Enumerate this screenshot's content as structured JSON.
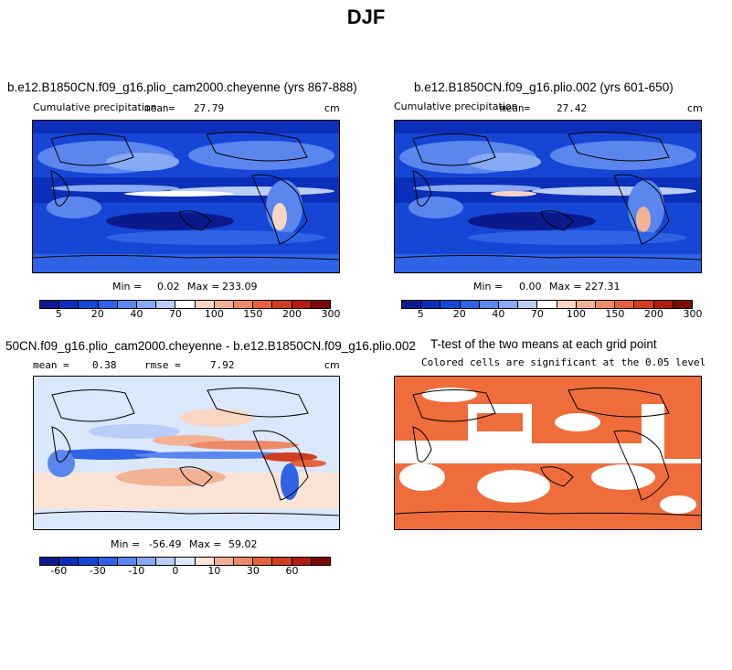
{
  "page": {
    "title": "DJF"
  },
  "panels": {
    "p1": {
      "title": "b.e12.B1850CN.f09_g16.plio_cam2000.cheyenne (yrs 867-888)",
      "variable": "Cumulative precipitation",
      "mean_label": "mean=",
      "mean": "27.79",
      "units": "cm",
      "min_label": "Min =",
      "min": "0.02",
      "max_label": "Max =",
      "max": "233.09"
    },
    "p2": {
      "title": "b.e12.B1850CN.f09_g16.plio.002 (yrs 601-650)",
      "variable": "Cumulative precipitation",
      "mean_label": "mean=",
      "mean": "27.42",
      "units": "cm",
      "min_label": "Min =",
      "min": "0.00",
      "max_label": "Max =",
      "max": "227.31"
    },
    "p3": {
      "title": "50CN.f09_g16.plio_cam2000.cheyenne - b.e12.B1850CN.f09_g16.plio.002",
      "mean_label": "mean =",
      "mean": "0.38",
      "rmse_label": "rmse =",
      "rmse": "7.92",
      "units": "cm",
      "min_label": "Min =",
      "min": "-56.49",
      "max_label": "Max =",
      "max": "59.02"
    },
    "p4": {
      "title": "T-test of the two means at each grid point",
      "subtitle": "Colored cells are significant at the 0.05 level"
    }
  },
  "colorbars": {
    "precip": {
      "labels": [
        "5",
        "20",
        "40",
        "70",
        "100",
        "150",
        "200",
        "300"
      ],
      "colors": [
        "#0a1a8c",
        "#0b2fb8",
        "#1646d6",
        "#2f63e6",
        "#5a86ee",
        "#88a9f3",
        "#b9cdf7",
        "#ffffff",
        "#f9d6c4",
        "#f4b295",
        "#ee8a66",
        "#e4623f",
        "#cf3d22",
        "#b01c0f",
        "#7a0a05"
      ]
    },
    "diff": {
      "labels": [
        "-60",
        "-30",
        "-10",
        "0",
        "10",
        "30",
        "60"
      ],
      "colors": [
        "#0a1a8c",
        "#0b2fb8",
        "#1646d6",
        "#2f63e6",
        "#5a86ee",
        "#88a9f3",
        "#b9cdf7",
        "#dbe7fb",
        "#fbe4d6",
        "#f4b295",
        "#ee8a66",
        "#e4623f",
        "#cf3d22",
        "#b01c0f",
        "#7a0a05"
      ]
    },
    "ttest": {
      "color": "#ee6d3b"
    }
  }
}
